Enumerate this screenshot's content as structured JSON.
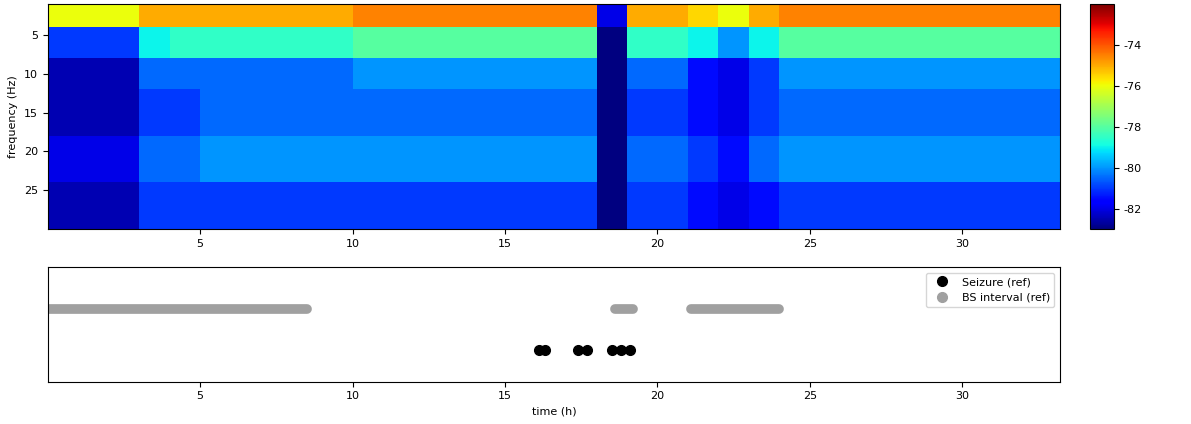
{
  "chart_data": [
    {
      "type": "heatmap",
      "ylabel": "frequency (Hz)",
      "xlim": [
        0,
        33.2
      ],
      "xticks": [
        5,
        10,
        15,
        20,
        25,
        30
      ],
      "ylim": [
        30,
        1
      ],
      "yticks": [
        5,
        10,
        15,
        20,
        25
      ],
      "x_edges": [
        0,
        1,
        2,
        3,
        4,
        5,
        6,
        7,
        8,
        9,
        10,
        11,
        12,
        13,
        14,
        15,
        16,
        17,
        18,
        19,
        20,
        21,
        22,
        23,
        24,
        25,
        26,
        27,
        28,
        29,
        30,
        31,
        32,
        33.2
      ],
      "y_edges": [
        1,
        4,
        8,
        12,
        18,
        24,
        30
      ],
      "cells": [
        [
          -76,
          -76,
          -76,
          -75,
          -75,
          -75,
          -75,
          -75,
          -75,
          -75,
          -74.5,
          -74.5,
          -74.5,
          -74.5,
          -74.5,
          -74.5,
          -74.5,
          -74.5,
          -82,
          -75,
          -75,
          -75.5,
          -76,
          -75,
          -74.5,
          -74.5,
          -74.5,
          -74.5,
          -74.5,
          -74.5,
          -74.5,
          -74.5,
          -74.5
        ],
        [
          -81,
          -81,
          -81,
          -79,
          -78.5,
          -78.5,
          -78.5,
          -78.5,
          -78.5,
          -78.5,
          -78,
          -78,
          -78,
          -78,
          -78,
          -78,
          -78,
          -78,
          -83,
          -78.5,
          -78.5,
          -79,
          -80,
          -79,
          -78,
          -78,
          -78,
          -78,
          -78,
          -78,
          -78,
          -78,
          -78
        ],
        [
          -82.5,
          -82.5,
          -82.5,
          -80.5,
          -80.5,
          -80.5,
          -80.5,
          -80.5,
          -80.5,
          -80.5,
          -80,
          -80,
          -80,
          -80,
          -80,
          -80,
          -80,
          -80,
          -83,
          -80.5,
          -80.5,
          -81.5,
          -82,
          -81,
          -80,
          -80,
          -80,
          -80,
          -80,
          -80,
          -80,
          -80,
          -80
        ],
        [
          -82.5,
          -82.5,
          -82.5,
          -81,
          -81,
          -80.5,
          -80.5,
          -80.5,
          -80.5,
          -80.5,
          -80.5,
          -80.5,
          -80.5,
          -80.5,
          -80.5,
          -80.5,
          -80.5,
          -80.5,
          -83,
          -81,
          -81,
          -81.5,
          -82,
          -81,
          -80.5,
          -80.5,
          -80.5,
          -80.5,
          -80.5,
          -80.5,
          -80.5,
          -80.5,
          -80.5
        ],
        [
          -82,
          -82,
          -82,
          -80.5,
          -80.5,
          -80,
          -80,
          -80,
          -80,
          -80,
          -80,
          -80,
          -80,
          -80,
          -80,
          -80,
          -80,
          -80,
          -83,
          -80.5,
          -80.5,
          -81,
          -81.5,
          -80.5,
          -80,
          -80,
          -80,
          -80,
          -80,
          -80,
          -80,
          -80,
          -80
        ],
        [
          -82.5,
          -82.5,
          -82.5,
          -81,
          -81,
          -81,
          -81,
          -81,
          -81,
          -81,
          -81,
          -81,
          -81,
          -81,
          -81,
          -81,
          -81,
          -81,
          -83,
          -81,
          -81,
          -81.5,
          -82,
          -81.5,
          -81,
          -81,
          -81,
          -81,
          -81,
          -81,
          -81,
          -81,
          -81
        ]
      ],
      "colorbar": {
        "range": [
          -83,
          -72
        ],
        "ticks": [
          -82,
          -80,
          -78,
          -76,
          -74
        ]
      }
    },
    {
      "type": "event",
      "xlabel": "time (h)",
      "xlim": [
        0,
        33.2
      ],
      "xticks": [
        5,
        10,
        15,
        20,
        25,
        30
      ],
      "tick_labels": "x",
      "legend": "upper right",
      "series": [
        {
          "name": "Seizure (ref)",
          "color": "#000000",
          "marker": "circle",
          "x": [
            16.1,
            16.3,
            17.4,
            17.7,
            18.5,
            18.8,
            19.1
          ]
        },
        {
          "name": "BS interval (ref)",
          "color": "#a0a0a0",
          "marker": "circle",
          "intervals": [
            [
              0,
              8.5
            ],
            [
              18.6,
              19.2
            ],
            [
              21.1,
              24.0
            ]
          ]
        }
      ]
    }
  ]
}
